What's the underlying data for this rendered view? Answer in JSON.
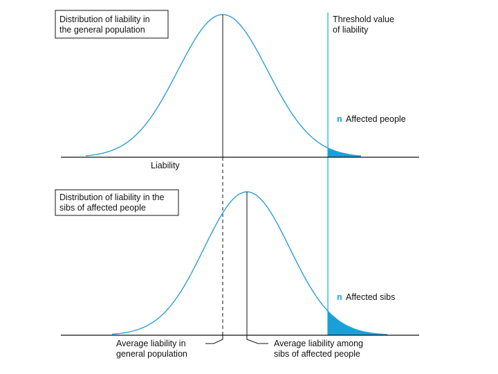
{
  "colors": {
    "curve": "#2a9fd6",
    "threshold": "#7fd0ef",
    "fill": "#1aa0d8",
    "axis": "#111111",
    "text": "#111111"
  },
  "top_panel": {
    "title_line1": "Distribution of liability in",
    "title_line2": "the general population",
    "axis_label": "Liability",
    "tail_marker": "n",
    "tail_label": "Affected people"
  },
  "bottom_panel": {
    "title_line1": "Distribution of liability in the",
    "title_line2": "sibs of affected people",
    "tail_marker": "n",
    "tail_label": "Affected sibs"
  },
  "threshold": {
    "label_line1": "Threshold value",
    "label_line2": "of liability"
  },
  "callouts": {
    "general_line1": "Average liability in",
    "general_line2": "general population",
    "sibs_line1": "Average liability among",
    "sibs_line2": "sibs of affected people"
  }
}
